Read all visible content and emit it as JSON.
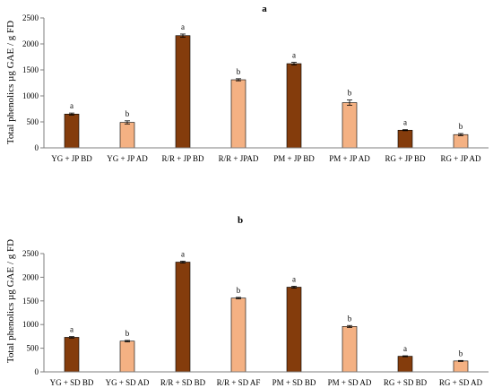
{
  "colors": {
    "BD": "#843c0c",
    "AD": "#f4b183",
    "bar_edge": "#000000",
    "axis": "#7f7f7f"
  },
  "chart_data": [
    {
      "type": "bar",
      "panel_label": "a",
      "ylabel": "Total phenolics µg GAE / g FD",
      "ylim": [
        0,
        2500
      ],
      "yticks": [
        0,
        500,
        1000,
        1500,
        2000,
        2500
      ],
      "grid": false,
      "categories": [
        "YG + JP BD",
        "YG + JP AD",
        "R/R + JP BD",
        "R/R + JPAD",
        "PM + JP BD",
        "PM + JP AD",
        "RG + JP BD",
        "RG + JP AD"
      ],
      "values": [
        650,
        490,
        2160,
        1310,
        1620,
        870,
        340,
        255
      ],
      "errors": [
        20,
        30,
        30,
        20,
        25,
        50,
        10,
        20
      ],
      "bar_groups": [
        "BD",
        "AD",
        "BD",
        "AD",
        "BD",
        "AD",
        "BD",
        "AD"
      ],
      "significance": [
        "a",
        "b",
        "a",
        "b",
        "a",
        "b",
        "a",
        "b"
      ]
    },
    {
      "type": "bar",
      "panel_label": "b",
      "ylabel": "Total phenolics µg GAE / g FD",
      "ylim": [
        0,
        2500
      ],
      "yticks": [
        0,
        500,
        1000,
        1500,
        2000,
        2500
      ],
      "grid": false,
      "categories": [
        "YG + SD BD",
        "YG + SD AD",
        "R/R + SD BD",
        "R/R + SD AF",
        "PM + SD BD",
        "PM + SD AD",
        "RG + SD BD",
        "RG + SD AD"
      ],
      "values": [
        730,
        650,
        2320,
        1560,
        1790,
        960,
        330,
        230
      ],
      "errors": [
        15,
        15,
        20,
        15,
        20,
        20,
        10,
        10
      ],
      "bar_groups": [
        "BD",
        "AD",
        "BD",
        "AD",
        "BD",
        "AD",
        "BD",
        "AD"
      ],
      "significance": [
        "a",
        "b",
        "a",
        "b",
        "a",
        "b",
        "a",
        "b"
      ]
    }
  ]
}
